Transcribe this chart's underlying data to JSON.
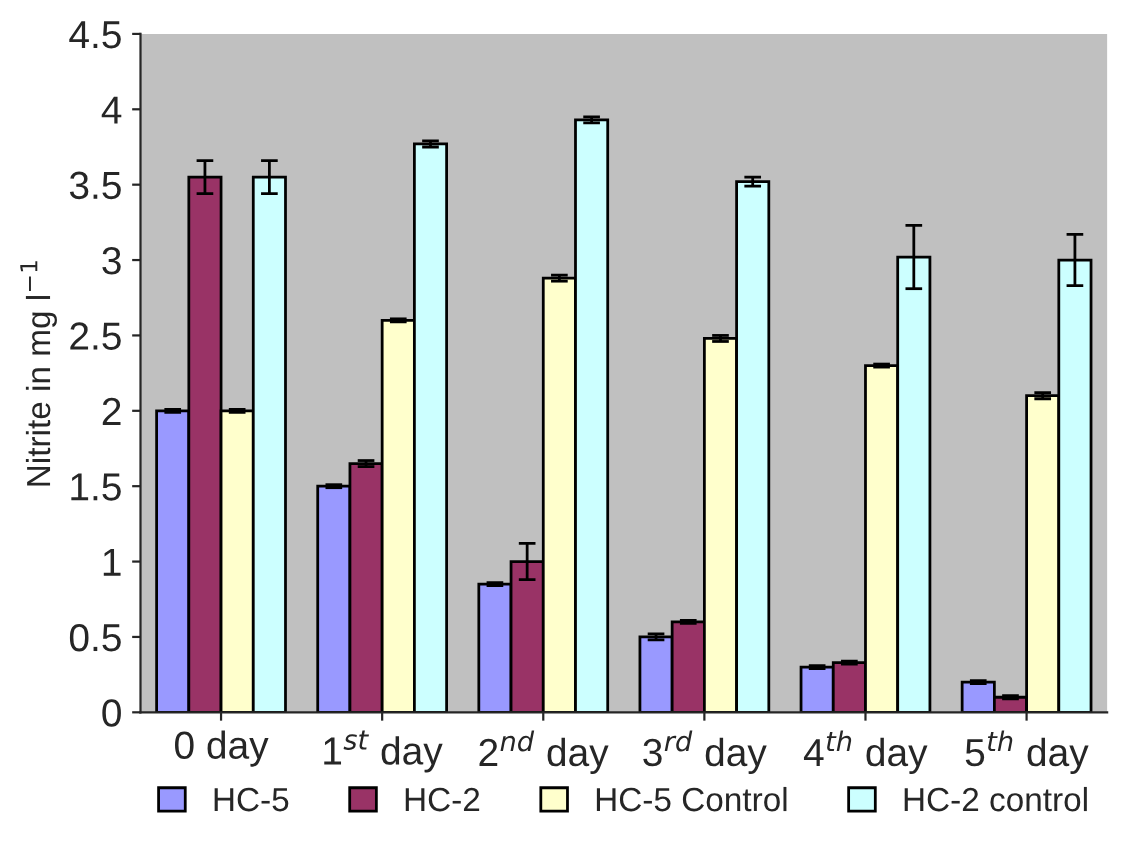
{
  "chart_data": {
    "type": "bar",
    "ylabel": "Nitrite in mg l$^{−1}$",
    "categories": [
      "0 day",
      "1$^{st}$ day",
      "2$^{nd}$ day",
      "3$^{rd}$ day",
      "4$^{th}$ day",
      "5$^{th}$ day"
    ],
    "series": [
      {
        "name": "HC-5",
        "color": "#9999ff",
        "values": [
          2.0,
          1.5,
          0.85,
          0.5,
          0.3,
          0.2
        ],
        "errors": [
          0.01,
          0.01,
          0.01,
          0.02,
          0.01,
          0.01
        ]
      },
      {
        "name": "HC-2",
        "color": "#993366",
        "values": [
          3.55,
          1.65,
          1.0,
          0.6,
          0.33,
          0.1
        ],
        "errors": [
          0.11,
          0.02,
          0.12,
          0.01,
          0.01,
          0.01
        ]
      },
      {
        "name": "HC-5 Control",
        "color": "#ffffcc",
        "values": [
          2.0,
          2.6,
          2.88,
          2.48,
          2.3,
          2.1
        ],
        "errors": [
          0.01,
          0.01,
          0.02,
          0.02,
          0.01,
          0.02
        ]
      },
      {
        "name": "HC-2 control",
        "color": "#ccffff",
        "values": [
          3.55,
          3.77,
          3.93,
          3.52,
          3.02,
          3.0
        ],
        "errors": [
          0.11,
          0.02,
          0.02,
          0.03,
          0.21,
          0.17
        ]
      }
    ],
    "ylim": [
      0,
      4.5
    ],
    "yticks": [
      0,
      0.5,
      1,
      1.5,
      2,
      2.5,
      3,
      3.5,
      4,
      4.5
    ],
    "grid": false,
    "legend": "bottom"
  }
}
